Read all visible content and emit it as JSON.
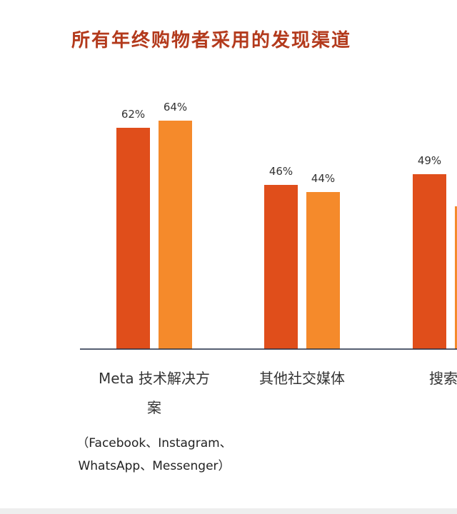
{
  "chart_data": {
    "type": "bar",
    "title": "所有年终购物者采用的发现渠道",
    "categories": [
      {
        "label_lines": [
          "Meta 技术解决方",
          "案"
        ],
        "sub_lines": [
          "（Facebook、Instagram、",
          "WhatsApp、Messenger）"
        ]
      },
      {
        "label_lines": [
          "其他社交媒体"
        ],
        "sub_lines": []
      },
      {
        "label_lines": [
          "搜索引"
        ],
        "sub_lines": []
      }
    ],
    "series": [
      {
        "color": "#e04e1b",
        "values": [
          62,
          46,
          49
        ],
        "labels": [
          "62%",
          "46%",
          "49%"
        ]
      },
      {
        "color": "#f58a2b",
        "values": [
          64,
          44,
          40
        ],
        "labels": [
          "64%",
          "44%",
          ""
        ]
      }
    ],
    "ylim": [
      0,
      100
    ],
    "grid": false,
    "legend": "none"
  },
  "colors": {
    "title": "#b33a1c",
    "axis": "#1f2a44",
    "text": "#333333"
  }
}
